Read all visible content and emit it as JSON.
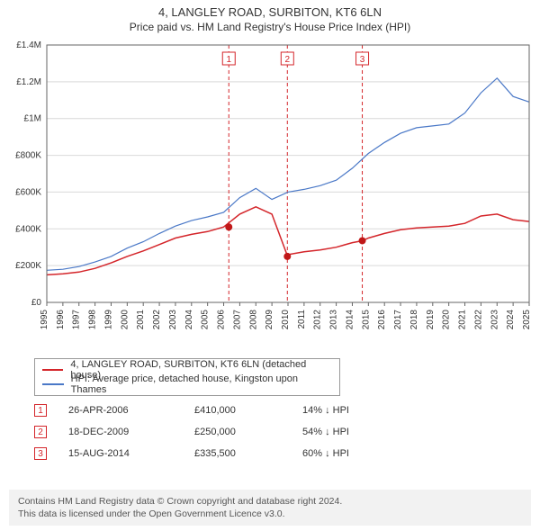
{
  "title_line1": "4, LANGLEY ROAD, SURBITON, KT6 6LN",
  "title_line2": "Price paid vs. HM Land Registry's House Price Index (HPI)",
  "chart": {
    "type": "line",
    "background_color": "#ffffff",
    "gridline_color": "#d9d9d9",
    "axis_color": "#666666",
    "tick_fontsize": 10,
    "tick_color": "#333333",
    "x_years": [
      1995,
      1996,
      1997,
      1998,
      1999,
      2000,
      2001,
      2002,
      2003,
      2004,
      2005,
      2006,
      2007,
      2008,
      2009,
      2010,
      2011,
      2012,
      2013,
      2014,
      2015,
      2016,
      2017,
      2018,
      2019,
      2020,
      2021,
      2022,
      2023,
      2024,
      2025
    ],
    "ylim": [
      0,
      1400000
    ],
    "ytick_step": 200000,
    "ytick_labels": [
      "£0",
      "£200K",
      "£400K",
      "£600K",
      "£800K",
      "£1M",
      "£1.2M",
      "£1.4M"
    ],
    "series": [
      {
        "name": "property",
        "label": "4, LANGLEY ROAD, SURBITON, KT6 6LN (detached house)",
        "color": "#d4252a",
        "line_width": 1.5,
        "y_by_year": {
          "1995": 150000,
          "1996": 155000,
          "1997": 165000,
          "1998": 185000,
          "1999": 215000,
          "2000": 250000,
          "2001": 280000,
          "2002": 315000,
          "2003": 350000,
          "2004": 370000,
          "2005": 385000,
          "2006": 410000,
          "2007": 480000,
          "2008": 520000,
          "2009": 480000,
          "2009.98": 250000,
          "2010": 260000,
          "2011": 275000,
          "2012": 285000,
          "2013": 300000,
          "2014": 325000,
          "2014.63": 335500,
          "2015": 350000,
          "2016": 375000,
          "2017": 395000,
          "2018": 405000,
          "2019": 410000,
          "2020": 415000,
          "2021": 430000,
          "2022": 470000,
          "2023": 480000,
          "2024": 450000,
          "2025": 440000
        }
      },
      {
        "name": "hpi",
        "label": "HPI: Average price, detached house, Kingston upon Thames",
        "color": "#4a78c7",
        "line_width": 1.2,
        "y_by_year": {
          "1995": 175000,
          "1996": 180000,
          "1997": 195000,
          "1998": 220000,
          "1999": 250000,
          "2000": 295000,
          "2001": 330000,
          "2002": 375000,
          "2003": 415000,
          "2004": 445000,
          "2005": 465000,
          "2006": 490000,
          "2007": 570000,
          "2008": 620000,
          "2009": 560000,
          "2010": 600000,
          "2011": 615000,
          "2012": 635000,
          "2013": 665000,
          "2014": 730000,
          "2015": 810000,
          "2016": 870000,
          "2017": 920000,
          "2018": 950000,
          "2019": 960000,
          "2020": 970000,
          "2021": 1030000,
          "2022": 1140000,
          "2023": 1220000,
          "2024": 1120000,
          "2025": 1090000
        }
      }
    ],
    "event_lines": [
      {
        "id": "1",
        "year": 2006.32,
        "color": "#d4252a",
        "dash": "4,3"
      },
      {
        "id": "2",
        "year": 2009.96,
        "color": "#d4252a",
        "dash": "4,3"
      },
      {
        "id": "3",
        "year": 2014.62,
        "color": "#d4252a",
        "dash": "4,3"
      }
    ],
    "markers": [
      {
        "year": 2006.32,
        "value": 410000,
        "color": "#c01818"
      },
      {
        "year": 2009.96,
        "value": 250000,
        "color": "#c01818"
      },
      {
        "year": 2014.62,
        "value": 335500,
        "color": "#c01818"
      }
    ],
    "marker_box": {
      "border": "#d4252a",
      "text": "#d4252a",
      "bg": "#ffffff",
      "size": 14,
      "fontsize": 10
    }
  },
  "legend": {
    "border_color": "#999999",
    "rows": [
      {
        "color": "#d4252a",
        "label": "4, LANGLEY ROAD, SURBITON, KT6 6LN (detached house)"
      },
      {
        "color": "#4a78c7",
        "label": "HPI: Average price, detached house, Kingston upon Thames"
      }
    ]
  },
  "transactions": [
    {
      "id": "1",
      "date": "26-APR-2006",
      "price": "£410,000",
      "delta": "14% ↓ HPI"
    },
    {
      "id": "2",
      "date": "18-DEC-2009",
      "price": "£250,000",
      "delta": "54% ↓ HPI"
    },
    {
      "id": "3",
      "date": "15-AUG-2014",
      "price": "£335,500",
      "delta": "60% ↓ HPI"
    }
  ],
  "tx_marker_style": {
    "border": "#d4252a",
    "text": "#d4252a"
  },
  "footer_line1": "Contains HM Land Registry data © Crown copyright and database right 2024.",
  "footer_line2": "This data is licensed under the Open Government Licence v3.0.",
  "footer_bg": "#f2f2f2"
}
